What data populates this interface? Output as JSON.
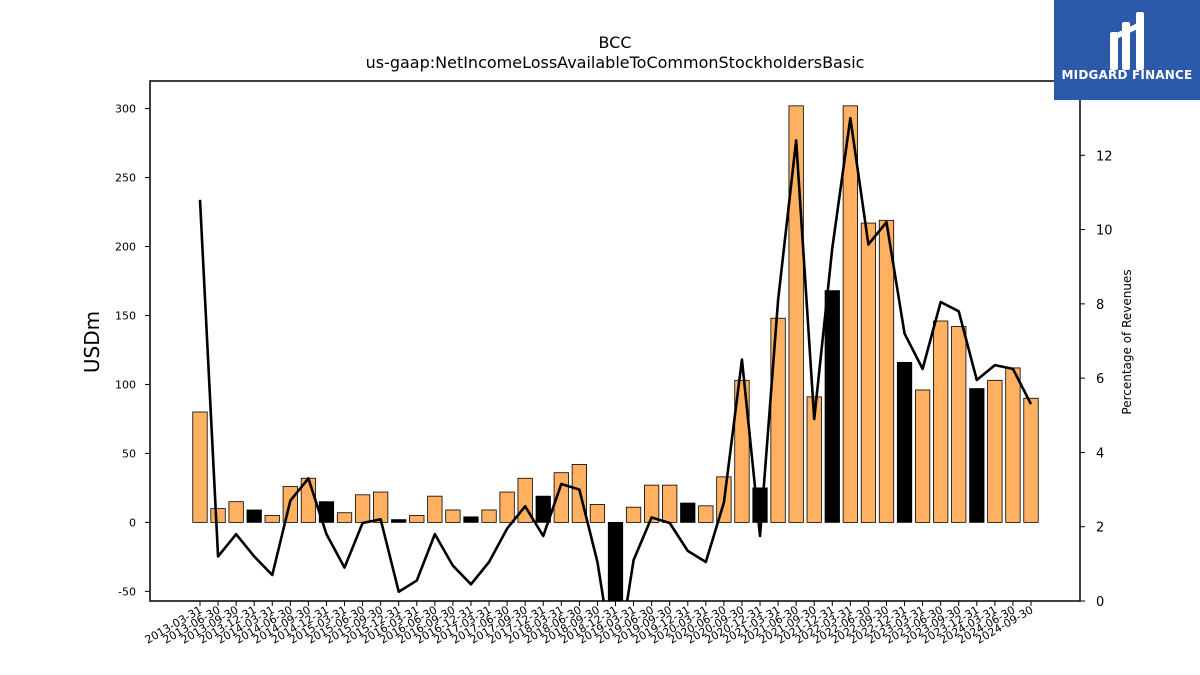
{
  "logo": {
    "text": "MIDGARD FINANCE"
  },
  "colors": {
    "positive_bar": "#ffb060",
    "negative_bar": "#000000",
    "line": "#000000"
  },
  "chart_data": {
    "type": "bar",
    "title": "BCC",
    "subtitle": "us-gaap:NetIncomeLossAvailableToCommonStockholdersBasic",
    "ylabel": "USDm",
    "ylabel_right": "Percentage of Revenues",
    "ylim": [
      -57,
      320
    ],
    "ylim_right": [
      0,
      14
    ],
    "yticks": [
      -50,
      0,
      50,
      100,
      150,
      200,
      250,
      300
    ],
    "yticks_right": [
      0,
      2,
      4,
      6,
      8,
      10,
      12
    ],
    "categories": [
      "2013-03-31",
      "2013-06-30",
      "2013-09-30",
      "2013-12-31",
      "2014-03-31",
      "2014-06-30",
      "2014-09-30",
      "2014-12-31",
      "2015-03-31",
      "2015-06-30",
      "2015-09-30",
      "2015-12-31",
      "2016-03-31",
      "2016-06-30",
      "2016-09-30",
      "2016-12-31",
      "2017-03-31",
      "2017-06-30",
      "2017-09-30",
      "2017-12-31",
      "2018-03-31",
      "2018-06-30",
      "2018-09-30",
      "2018-12-31",
      "2019-03-31",
      "2019-06-30",
      "2019-09-30",
      "2019-12-31",
      "2020-03-31",
      "2020-06-30",
      "2020-09-30",
      "2020-12-31",
      "2021-03-31",
      "2021-06-30",
      "2021-09-30",
      "2021-12-31",
      "2022-03-31",
      "2022-06-30",
      "2022-09-30",
      "2022-12-31",
      "2023-03-31",
      "2023-06-30",
      "2023-09-30",
      "2023-12-31",
      "2024-03-31",
      "2024-06-30",
      "2024-09-30"
    ],
    "series": [
      {
        "type": "bar",
        "axis": "left",
        "values": [
          80,
          10,
          15,
          9,
          5,
          26,
          32,
          15,
          7,
          20,
          22,
          2,
          5,
          19,
          9,
          4,
          9,
          22,
          32,
          19,
          36,
          42,
          13,
          -57,
          11,
          27,
          27,
          14,
          12,
          33,
          103,
          25,
          148,
          302,
          91,
          168,
          302,
          217,
          219,
          116,
          96,
          146,
          142,
          97,
          103,
          112,
          90
        ],
        "highlight": [
          false,
          false,
          false,
          true,
          false,
          false,
          false,
          true,
          false,
          false,
          false,
          true,
          false,
          false,
          false,
          true,
          false,
          false,
          false,
          true,
          false,
          false,
          false,
          true,
          false,
          false,
          false,
          true,
          false,
          false,
          false,
          true,
          false,
          false,
          false,
          true,
          false,
          false,
          false,
          true,
          false,
          false,
          false,
          true,
          false,
          false,
          false
        ]
      },
      {
        "type": "line",
        "axis": "right",
        "values": [
          10.8,
          1.2,
          1.8,
          1.2,
          0.7,
          2.7,
          3.3,
          1.8,
          0.9,
          2.1,
          2.2,
          0.25,
          0.55,
          1.8,
          0.95,
          0.45,
          1.05,
          1.95,
          2.55,
          1.75,
          3.15,
          3.0,
          1.05,
          -2.0,
          1.1,
          2.25,
          2.1,
          1.35,
          1.05,
          2.65,
          6.5,
          1.75,
          8.1,
          12.4,
          4.9,
          9.5,
          13.0,
          9.6,
          10.2,
          7.2,
          6.25,
          8.05,
          7.8,
          5.95,
          6.35,
          6.25,
          5.3
        ]
      }
    ]
  }
}
